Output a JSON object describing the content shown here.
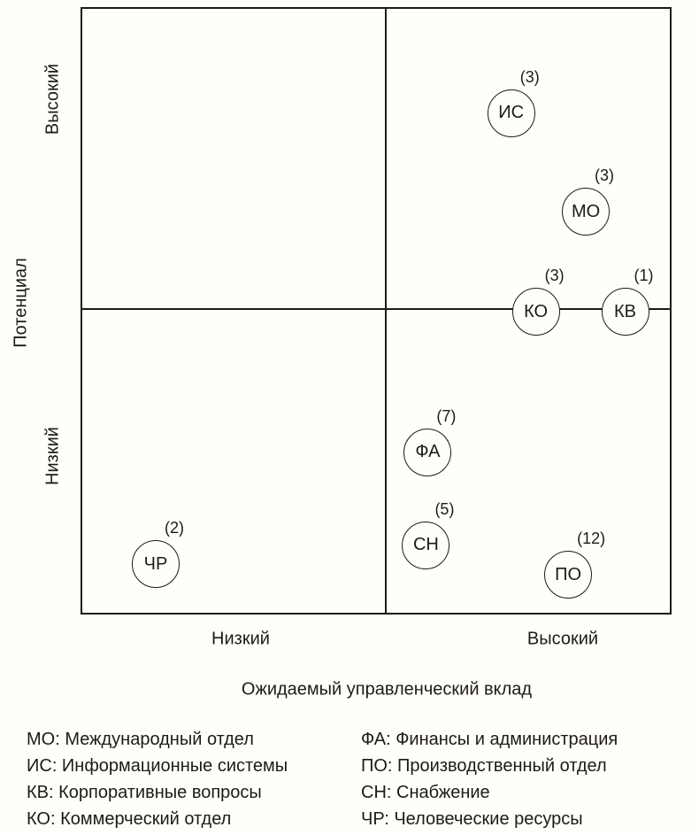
{
  "chart_data": {
    "type": "scatter",
    "title": "",
    "xlabel": "Ожидаемый управленческий вклад",
    "ylabel": "Потенциал",
    "x_axis_labels": [
      "Низкий",
      "Высокий"
    ],
    "y_axis_labels": [
      "Высокий",
      "Низкий"
    ],
    "grid": "quadrant",
    "divider_x": 0.516,
    "divider_y": 0.497,
    "points": [
      {
        "label": "ИС",
        "count": 3,
        "x": 0.73,
        "y": 0.173
      },
      {
        "label": "МО",
        "count": 3,
        "x": 0.857,
        "y": 0.336
      },
      {
        "label": "КО",
        "count": 3,
        "x": 0.772,
        "y": 0.502
      },
      {
        "label": "КВ",
        "count": 1,
        "x": 0.924,
        "y": 0.502
      },
      {
        "label": "ФА",
        "count": 7,
        "x": 0.588,
        "y": 0.734
      },
      {
        "label": "СН",
        "count": 5,
        "x": 0.585,
        "y": 0.888
      },
      {
        "label": "ЧР",
        "count": 2,
        "x": 0.125,
        "y": 0.92
      },
      {
        "label": "ПО",
        "count": 12,
        "x": 0.827,
        "y": 0.937
      }
    ]
  },
  "legend": {
    "columns": [
      [
        {
          "abbr": "МО",
          "name": "Международный отдел"
        },
        {
          "abbr": "ИС",
          "name": "Информационные системы"
        },
        {
          "abbr": "КВ",
          "name": "Корпоративные вопросы"
        },
        {
          "abbr": "КО",
          "name": "Коммерческий отдел"
        }
      ],
      [
        {
          "abbr": "ФА",
          "name": "Финансы и администрация"
        },
        {
          "abbr": "ПО",
          "name": "Производственный отдел"
        },
        {
          "abbr": "СН",
          "name": "Снабжение"
        },
        {
          "abbr": "ЧР",
          "name": "Человеческие ресурсы"
        }
      ]
    ]
  },
  "colors": {
    "ink": "#1e1b16",
    "background": "#fffefb"
  }
}
